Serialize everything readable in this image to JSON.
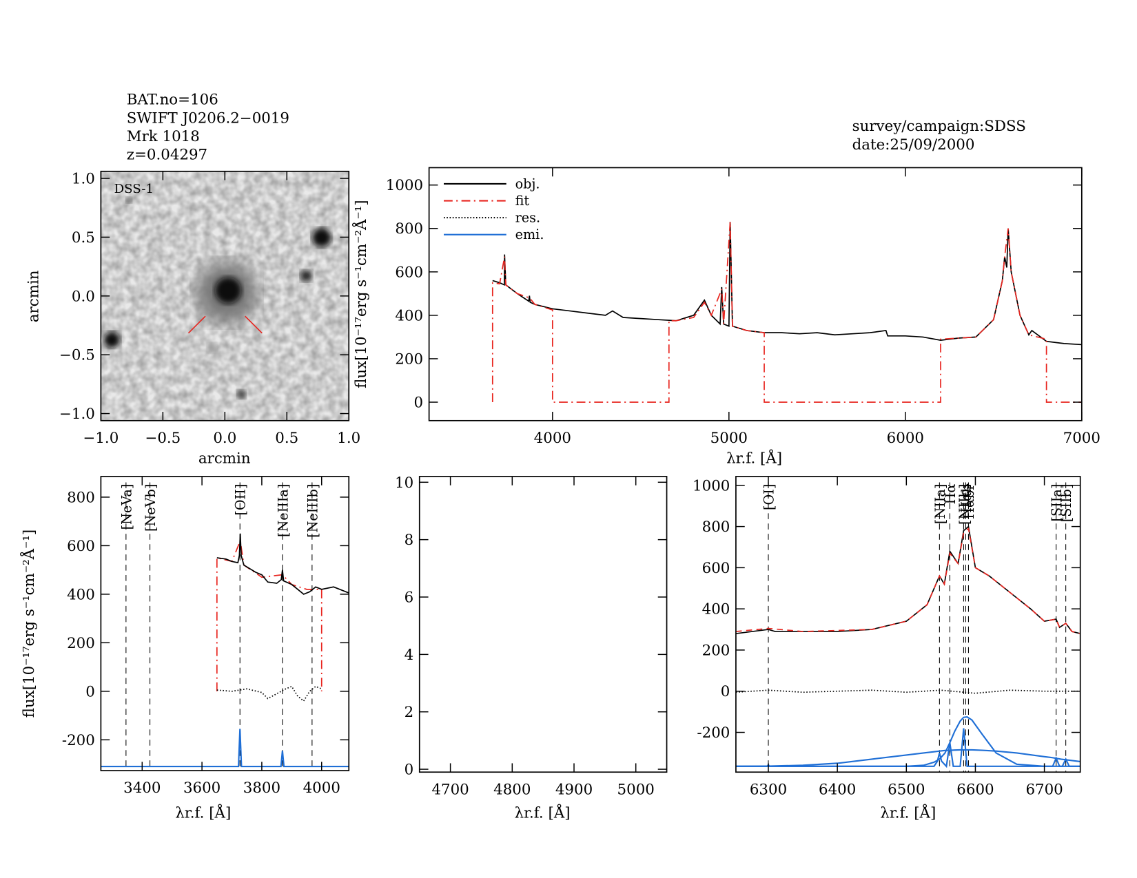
{
  "header": {
    "lines": [
      "BAT.no=106",
      "SWIFT J0206.2−0019",
      "Mrk 1018",
      "z=0.04297"
    ],
    "survey": "survey/campaign:SDSS",
    "date": "date:25/09/2000"
  },
  "chart_data": [
    {
      "type": "image",
      "annotation": "DSS-1",
      "x_label": "arcmin",
      "y_label": "arcmin",
      "xlim": [
        -1,
        1
      ],
      "ylim": [
        -1.06,
        1.06
      ],
      "xticks": [
        {
          "value": -1,
          "label": "−1.0"
        },
        {
          "value": -0.5,
          "label": "−0.5"
        },
        {
          "value": 0,
          "label": "0.0"
        },
        {
          "value": 0.5,
          "label": "0.5"
        },
        {
          "value": 1,
          "label": "1.0"
        }
      ],
      "yticks": [
        {
          "value": -1,
          "label": "−1.0"
        },
        {
          "value": -0.5,
          "label": "−0.5"
        },
        {
          "value": 0,
          "label": "0.0"
        },
        {
          "value": 0.5,
          "label": "0.5"
        },
        {
          "value": 1,
          "label": "1.0"
        }
      ]
    },
    {
      "type": "spectrum",
      "x_label": "λr.f. [Å]",
      "y_label": "flux[10⁻¹⁷erg s⁻¹cm⁻²Å⁻¹]",
      "xlim": [
        3300,
        7000
      ],
      "ylim": [
        -85,
        1080
      ],
      "xticks": [
        4000,
        5000,
        6000,
        7000
      ],
      "yticks": [
        0,
        200,
        400,
        600,
        800,
        1000
      ],
      "legend": [
        {
          "name": "obj.",
          "color": "#000000",
          "style": "solid"
        },
        {
          "name": "fit",
          "color": "#e8251f",
          "style": "dashdot"
        },
        {
          "name": "res.",
          "color": "#000000",
          "style": "dotted"
        },
        {
          "name": "emi.",
          "color": "#1f6fd6",
          "style": "solid"
        }
      ],
      "series": [
        {
          "color": "#000000",
          "style": "solid",
          "x": [
            3660,
            3700,
            3727,
            3728,
            3735,
            3800,
            3865,
            3869,
            3873,
            3900,
            4000,
            4100,
            4200,
            4300,
            4340,
            4400,
            4500,
            4600,
            4700,
            4800,
            4861,
            4900,
            4950,
            4959,
            4970,
            5000,
            5007,
            5020,
            5100,
            5200,
            5300,
            5400,
            5500,
            5600,
            5700,
            5800,
            5890,
            5900,
            6000,
            6100,
            6200,
            6300,
            6400,
            6500,
            6550,
            6563,
            6575,
            6583,
            6600,
            6650,
            6700,
            6717,
            6800,
            6900,
            7000
          ],
          "values": [
            560,
            550,
            540,
            680,
            540,
            500,
            465,
            490,
            460,
            450,
            430,
            420,
            410,
            400,
            420,
            390,
            385,
            380,
            375,
            400,
            470,
            400,
            360,
            530,
            360,
            350,
            830,
            350,
            330,
            320,
            320,
            315,
            320,
            310,
            315,
            320,
            330,
            305,
            305,
            300,
            285,
            295,
            300,
            380,
            560,
            670,
            620,
            800,
            600,
            400,
            310,
            330,
            280,
            270,
            265
          ]
        },
        {
          "color": "#e8251f",
          "style": "dashdot",
          "x": [
            3660,
            3660,
            3700,
            3728,
            3735,
            3800,
            3870,
            3900,
            4000,
            4000,
            4660,
            4660,
            4700,
            4800,
            4861,
            4900,
            4959,
            4970,
            5007,
            5020,
            5100,
            5200,
            5200,
            6200,
            6200,
            6300,
            6400,
            6500,
            6550,
            6563,
            6583,
            6600,
            6650,
            6700,
            6800,
            6800,
            7000
          ],
          "values": [
            0,
            550,
            545,
            670,
            540,
            500,
            480,
            450,
            425,
            0,
            0,
            375,
            375,
            390,
            460,
            400,
            520,
            360,
            830,
            350,
            330,
            320,
            0,
            0,
            290,
            295,
            300,
            380,
            560,
            670,
            800,
            600,
            400,
            310,
            290,
            0,
            0
          ]
        }
      ]
    },
    {
      "type": "spectrum",
      "x_label": "λr.f. [Å]",
      "y_label": "flux[10⁻¹⁷erg s⁻¹cm⁻²Å⁻¹]",
      "xlim": [
        3262,
        4091
      ],
      "ylim": [
        -327,
        885
      ],
      "xticks": [
        3400,
        3600,
        3800,
        4000
      ],
      "yticks": [
        -200,
        0,
        200,
        400,
        600,
        800
      ],
      "lines": [
        {
          "label": "[NeVa]",
          "x": 3346,
          "color": "#e8251f"
        },
        {
          "label": "[NeVb]",
          "x": 3426,
          "color": "#e8251f"
        },
        {
          "label": "[OII]",
          "x": 3727,
          "color": "#000000"
        },
        {
          "label": "[NeIIIa]",
          "x": 3869,
          "color": "#e8251f"
        },
        {
          "label": "[NeIIIb]",
          "x": 3968,
          "color": "#e8251f"
        }
      ],
      "series": [
        {
          "color": "#e8251f",
          "style": "dashdot",
          "x": [
            3650,
            3650,
            3700,
            3728,
            3740,
            3800,
            3869,
            3900,
            3950,
            4000,
            4000
          ],
          "values": [
            0,
            550,
            535,
            620,
            520,
            470,
            480,
            440,
            420,
            420,
            0
          ]
        },
        {
          "color": "#000000",
          "style": "solid",
          "x": [
            3650,
            3680,
            3700,
            3720,
            3725,
            3728,
            3731,
            3740,
            3780,
            3800,
            3820,
            3850,
            3865,
            3869,
            3873,
            3900,
            3920,
            3940,
            3960,
            3980,
            4000,
            4040,
            4091
          ],
          "values": [
            550,
            545,
            535,
            530,
            560,
            650,
            560,
            520,
            490,
            480,
            450,
            445,
            460,
            500,
            455,
            440,
            420,
            400,
            410,
            430,
            420,
            430,
            405
          ]
        },
        {
          "color": "#000000",
          "style": "dotted",
          "x": [
            3650,
            3700,
            3750,
            3800,
            3820,
            3850,
            3880,
            3900,
            3920,
            3940,
            3960,
            3980,
            4000
          ],
          "values": [
            5,
            0,
            10,
            -5,
            -30,
            -10,
            10,
            20,
            -20,
            -40,
            0,
            20,
            10
          ]
        },
        {
          "color": "#1f6fd6",
          "style": "solid",
          "x": [
            3262,
            3722,
            3727,
            3732,
            3864,
            3869,
            3874,
            4091
          ],
          "values": [
            -310,
            -310,
            -155,
            -310,
            -310,
            -245,
            -310,
            -310
          ]
        }
      ]
    },
    {
      "type": "spectrum",
      "x_label": "λr.f. [Å]",
      "xlim": [
        4650,
        5050
      ],
      "ylim": [
        -0.1,
        10.2
      ],
      "xticks": [
        4700,
        4800,
        4900,
        5000
      ],
      "yticks": [
        0,
        2,
        4,
        6,
        8,
        10
      ],
      "series": []
    },
    {
      "type": "spectrum",
      "x_label": "λr.f. [Å]",
      "xlim": [
        6253,
        6752
      ],
      "ylim": [
        -393,
        1043
      ],
      "xticks": [
        6300,
        6400,
        6500,
        6600,
        6700
      ],
      "yticks": [
        -200,
        0,
        200,
        400,
        600,
        800,
        1000
      ],
      "lines": [
        {
          "label": "[OI]",
          "x": 6300,
          "color": "#000000"
        },
        {
          "label": "[NIIa]",
          "x": 6548,
          "color": "#000000"
        },
        {
          "label": "Hα",
          "x": 6563,
          "color": "#000000"
        },
        {
          "label": "[NIIb]",
          "x": 6583,
          "color": "#000000"
        },
        {
          "label": "Hαb",
          "x": 6586,
          "color": "#000000"
        },
        {
          "label": "Hαbr",
          "x": 6590,
          "color": "#000000"
        },
        {
          "label": "[SIIa]",
          "x": 6717,
          "color": "#000000"
        },
        {
          "label": "[SIIb]",
          "x": 6731,
          "color": "#000000"
        }
      ],
      "series": [
        {
          "color": "#000000",
          "style": "solid",
          "x": [
            6253,
            6300,
            6310,
            6400,
            6450,
            6500,
            6530,
            6548,
            6555,
            6563,
            6575,
            6583,
            6590,
            6600,
            6620,
            6650,
            6680,
            6700,
            6717,
            6722,
            6731,
            6740,
            6752
          ],
          "values": [
            280,
            300,
            290,
            290,
            300,
            340,
            420,
            560,
            520,
            680,
            620,
            780,
            800,
            600,
            560,
            480,
            400,
            340,
            350,
            310,
            330,
            290,
            280
          ]
        },
        {
          "color": "#e8251f",
          "style": "dashed",
          "x": [
            6253,
            6300,
            6350,
            6400,
            6450,
            6500,
            6530,
            6548,
            6555,
            6563,
            6575,
            6583,
            6590,
            6600,
            6620,
            6650,
            6680,
            6700,
            6717,
            6722,
            6731,
            6740,
            6752
          ],
          "values": [
            290,
            305,
            290,
            295,
            300,
            340,
            420,
            560,
            520,
            670,
            620,
            770,
            790,
            600,
            560,
            480,
            400,
            340,
            350,
            310,
            330,
            290,
            280
          ]
        },
        {
          "color": "#000000",
          "style": "dotted",
          "x": [
            6253,
            6300,
            6350,
            6400,
            6450,
            6500,
            6550,
            6600,
            6650,
            6700,
            6752
          ],
          "values": [
            -5,
            5,
            -5,
            0,
            5,
            -5,
            5,
            -10,
            5,
            0,
            0
          ]
        },
        {
          "color": "#1f6fd6",
          "style": "solid",
          "x": [
            6253,
            6300,
            6350,
            6400,
            6450,
            6500,
            6525,
            6540,
            6548,
            6556,
            6563,
            6570,
            6578,
            6583,
            6588,
            6595,
            6610,
            6630,
            6660,
            6700,
            6710,
            6717,
            6724,
            6731,
            6738,
            6752
          ],
          "values": [
            -365,
            -364,
            -360,
            -350,
            -330,
            -310,
            -300,
            -294,
            -291,
            -288,
            -287,
            -286,
            -285,
            -285,
            -285,
            -285,
            -287,
            -291,
            -300,
            -318,
            -322,
            -326,
            -330,
            -333,
            -336,
            -342
          ]
        },
        {
          "color": "#1f6fd6",
          "style": "solid",
          "x": [
            6253,
            6500,
            6525,
            6540,
            6548,
            6556,
            6563,
            6570,
            6578,
            6583,
            6588,
            6595,
            6610,
            6630,
            6660,
            6700,
            6752
          ],
          "values": [
            -365,
            -365,
            -360,
            -345,
            -330,
            -300,
            -250,
            -195,
            -145,
            -127,
            -125,
            -140,
            -210,
            -300,
            -355,
            -365,
            -365
          ]
        },
        {
          "color": "#1f6fd6",
          "style": "solid",
          "x": [
            6253,
            6298,
            6300,
            6302,
            6540,
            6545,
            6548,
            6551,
            6558,
            6563,
            6568,
            6578,
            6583,
            6588,
            6712,
            6717,
            6722,
            6726,
            6731,
            6736,
            6752
          ],
          "values": [
            -365,
            -365,
            -358,
            -365,
            -365,
            -340,
            -300,
            -340,
            -365,
            -250,
            -365,
            -365,
            -180,
            -365,
            -365,
            -325,
            -365,
            -365,
            -330,
            -365,
            -365
          ]
        }
      ]
    }
  ]
}
